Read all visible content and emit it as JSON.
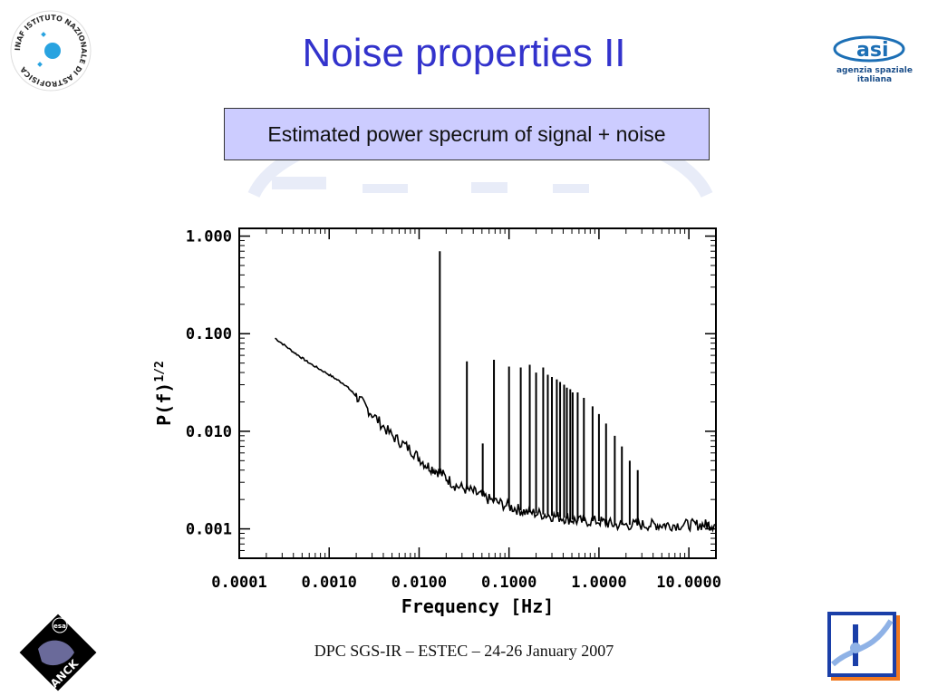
{
  "slide": {
    "title": "Noise properties II",
    "caption": "Estimated power specrum of signal + noise",
    "footer": "DPC SGS-IR – ESTEC – 24-26 January 2007"
  },
  "logos": {
    "inaf": {
      "ring_text": "INAF ISTITUTO NAZIONALE DI ASTROFISICA"
    },
    "asi": {
      "mark": "asi",
      "line1": "agenzia spaziale",
      "line2": "italiana"
    },
    "planck": {
      "badge": "esa",
      "name": "PLANCK"
    }
  },
  "colors": {
    "title": "#3333cc",
    "caption_bg": "#ccccff",
    "plot_ink": "#000000"
  },
  "chart_data": {
    "type": "line",
    "xlabel": "Frequency [Hz]",
    "ylabel": "P(f)",
    "ylabel_exponent": "1/2",
    "xscale": "log",
    "yscale": "log",
    "xlim": [
      0.0001,
      20
    ],
    "ylim": [
      0.0005,
      1.2
    ],
    "xticks": [
      0.0001,
      0.001,
      0.01,
      0.1,
      1,
      10
    ],
    "xtick_labels": [
      "0.0001",
      "0.0010",
      "0.0100",
      "0.1000",
      "1.0000",
      "10.0000"
    ],
    "yticks": [
      0.001,
      0.01,
      0.1,
      1
    ],
    "ytick_labels": [
      "0.001",
      "0.010",
      "0.100",
      "1.000"
    ],
    "series": [
      {
        "x": [
          0.00025,
          0.0004,
          0.0006,
          0.001,
          0.0015,
          0.002,
          0.003,
          0.005,
          0.008,
          0.012,
          0.017,
          0.025,
          0.04,
          0.06,
          0.1,
          0.15,
          0.25,
          0.4,
          0.6,
          1.0,
          1.5,
          2.5,
          4,
          6,
          10,
          15,
          20
        ],
        "y": [
          0.09,
          0.065,
          0.05,
          0.038,
          0.03,
          0.023,
          0.015,
          0.009,
          0.0065,
          0.0045,
          0.0038,
          0.0028,
          0.0024,
          0.002,
          0.0017,
          0.0015,
          0.0014,
          0.0013,
          0.0012,
          0.0012,
          0.0011,
          0.0011,
          0.0011,
          0.0011,
          0.0011,
          0.0011,
          0.0011
        ]
      }
    ],
    "peaks": [
      {
        "x": 0.017,
        "y": 0.7
      },
      {
        "x": 0.034,
        "y": 0.052
      },
      {
        "x": 0.051,
        "y": 0.0075
      },
      {
        "x": 0.068,
        "y": 0.054
      },
      {
        "x": 0.1,
        "y": 0.046
      },
      {
        "x": 0.135,
        "y": 0.045
      },
      {
        "x": 0.17,
        "y": 0.048
      },
      {
        "x": 0.2,
        "y": 0.04
      },
      {
        "x": 0.24,
        "y": 0.045
      },
      {
        "x": 0.27,
        "y": 0.038
      },
      {
        "x": 0.3,
        "y": 0.036
      },
      {
        "x": 0.34,
        "y": 0.034
      },
      {
        "x": 0.37,
        "y": 0.032
      },
      {
        "x": 0.41,
        "y": 0.03
      },
      {
        "x": 0.44,
        "y": 0.028
      },
      {
        "x": 0.48,
        "y": 0.027
      },
      {
        "x": 0.51,
        "y": 0.025
      },
      {
        "x": 0.58,
        "y": 0.025
      },
      {
        "x": 0.68,
        "y": 0.022
      },
      {
        "x": 0.85,
        "y": 0.018
      },
      {
        "x": 1.0,
        "y": 0.015
      },
      {
        "x": 1.2,
        "y": 0.012
      },
      {
        "x": 1.5,
        "y": 0.009
      },
      {
        "x": 1.8,
        "y": 0.007
      },
      {
        "x": 2.2,
        "y": 0.005
      },
      {
        "x": 2.7,
        "y": 0.004
      }
    ]
  }
}
